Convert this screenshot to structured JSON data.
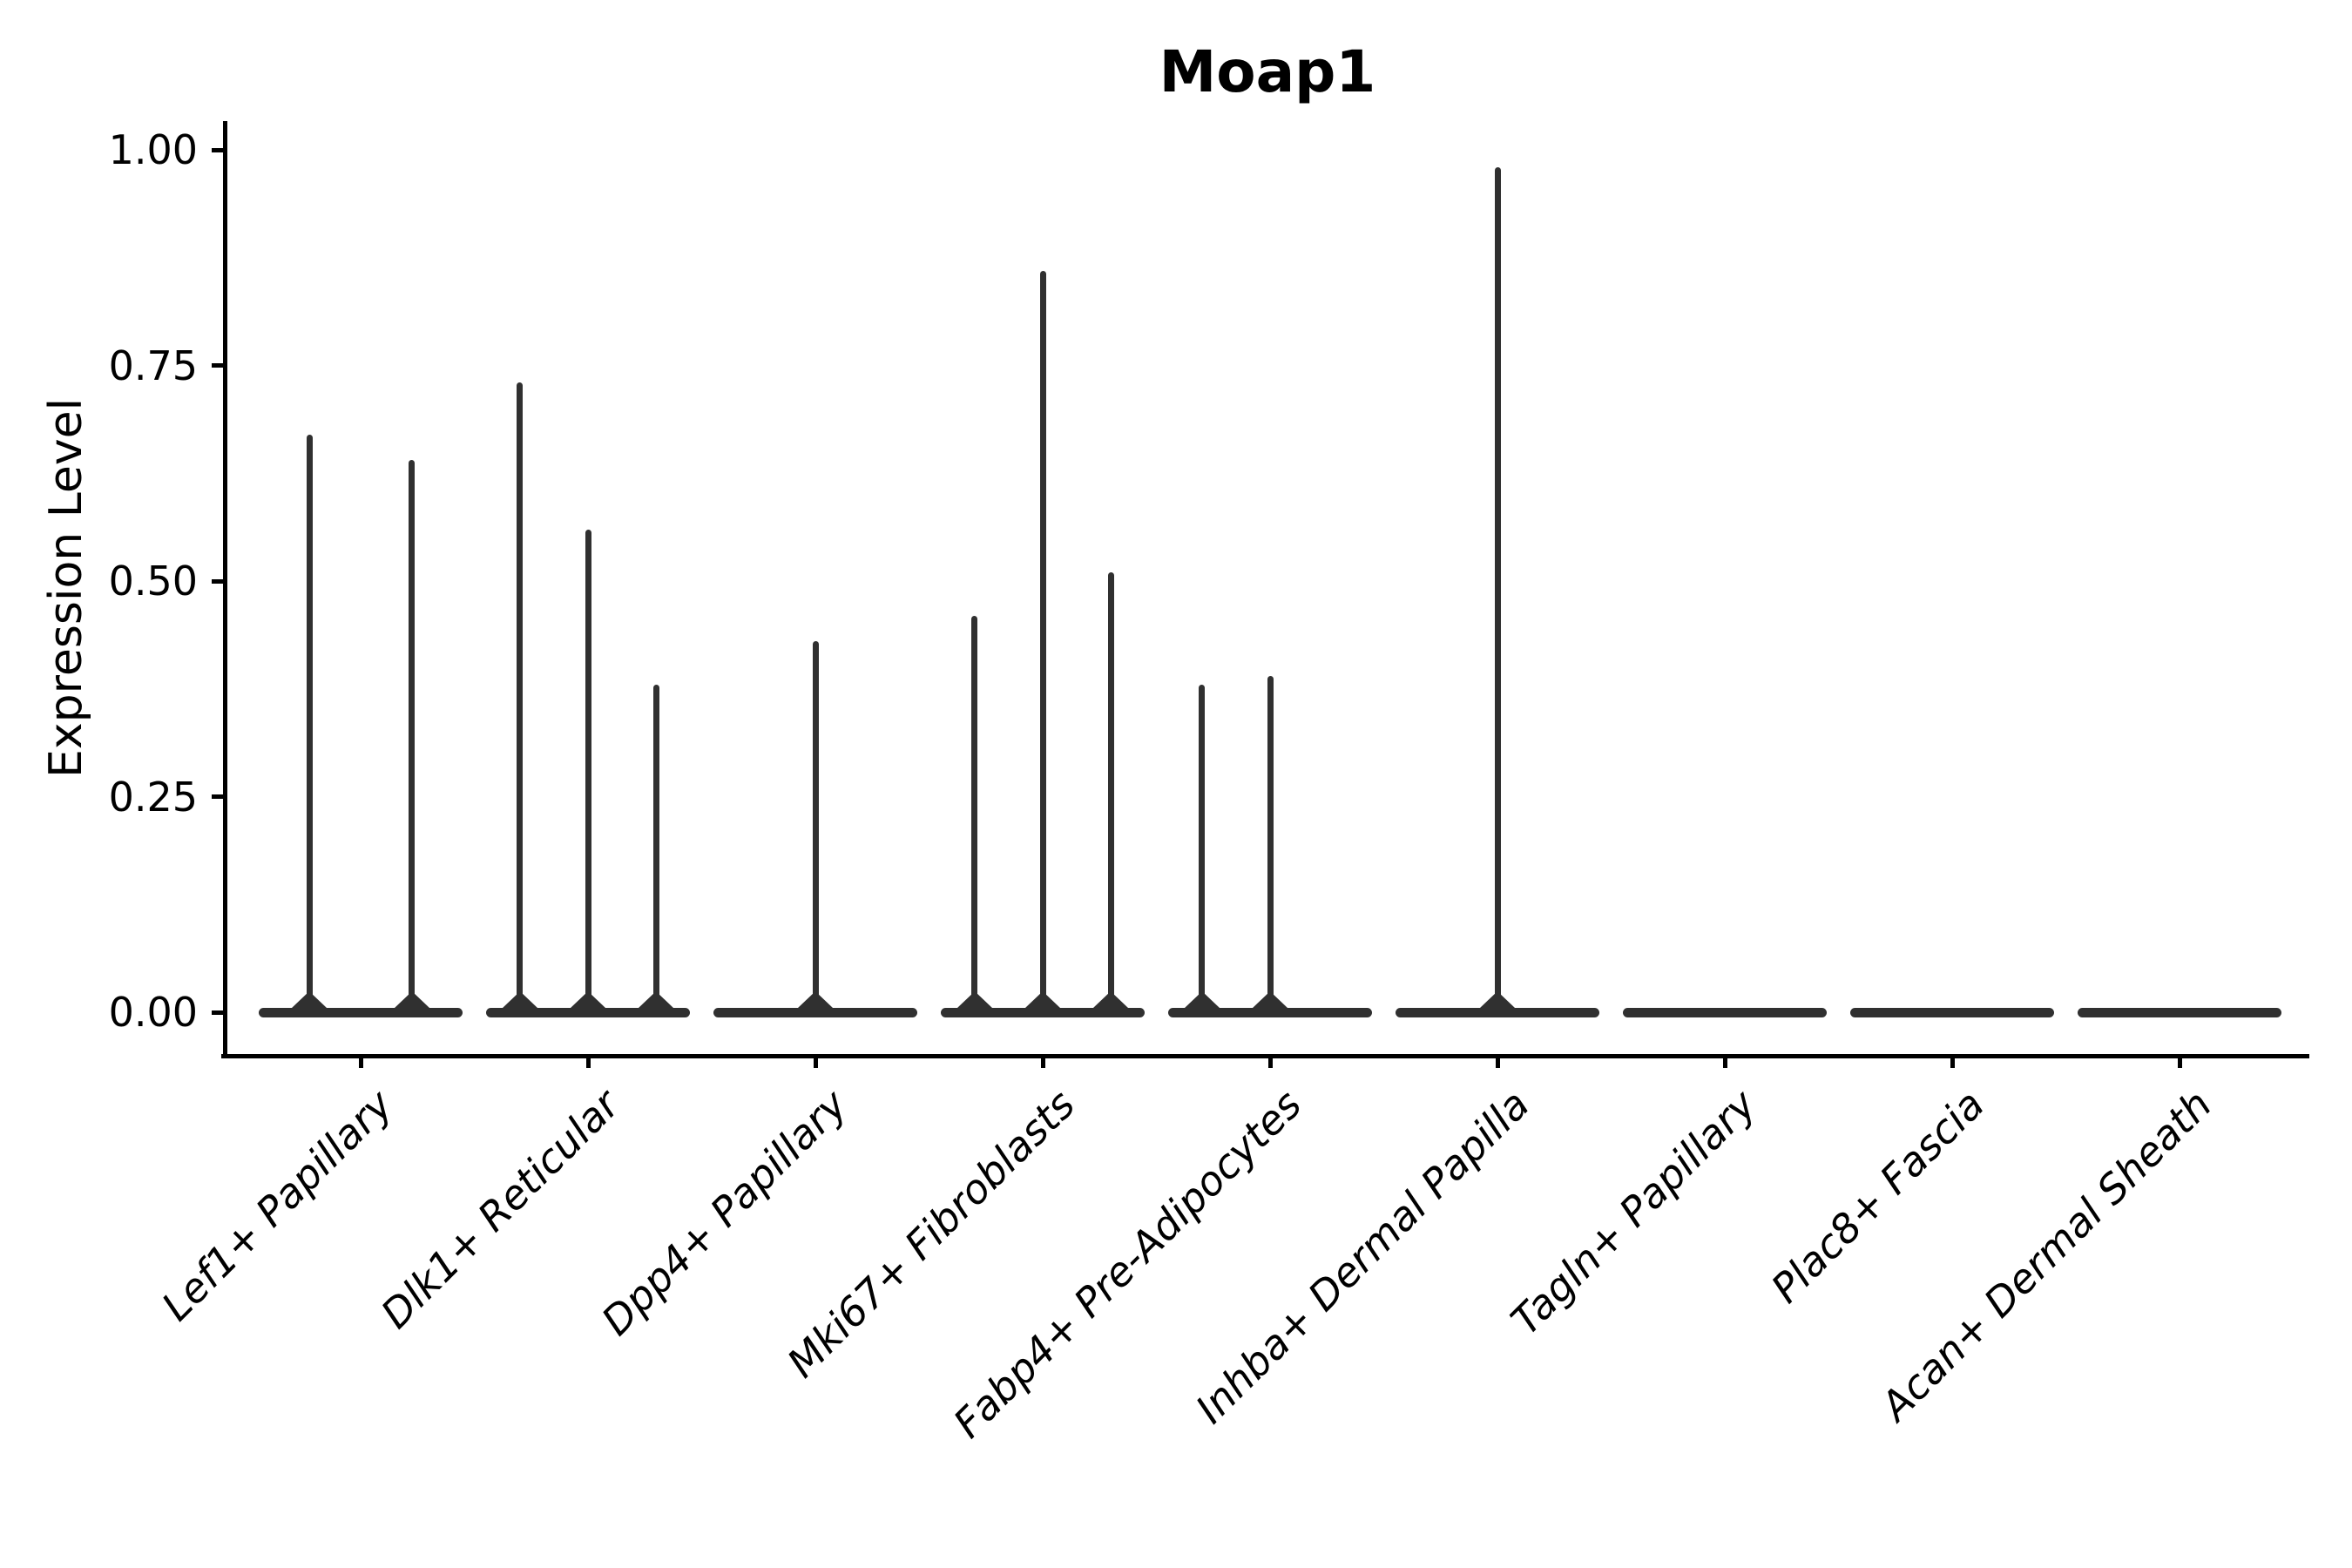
{
  "chart_data": {
    "type": "violin",
    "title": "Moap1",
    "ylabel": "Expression Level",
    "xlabel": "",
    "legend_position": "none",
    "grid": false,
    "ylim": [
      0,
      1.0
    ],
    "y_axis": {
      "tick_values": [
        0,
        0.25,
        0.5,
        0.75,
        1.0
      ],
      "tick_labels": [
        "0.00",
        "0.25",
        "0.50",
        "0.75",
        "1.00"
      ]
    },
    "x_tick_label_style": "italic, rotated 45deg, right-anchored",
    "categories": [
      {
        "label": "Lef1+ Papillary",
        "violins": [
          {
            "x_offset": -0.225,
            "max_expression": 0.67
          },
          {
            "x_offset": 0.225,
            "max_expression": 0.64
          }
        ]
      },
      {
        "label": "Dlk1+ Reticular",
        "violins": [
          {
            "x_offset": -0.3,
            "max_expression": 0.73
          },
          {
            "x_offset": 0.0,
            "max_expression": 0.56
          },
          {
            "x_offset": 0.3,
            "max_expression": 0.38
          }
        ]
      },
      {
        "label": "Dpp4+ Papillary",
        "violins": [
          {
            "x_offset": 0.0,
            "max_expression": 0.43
          }
        ]
      },
      {
        "label": "Mki67+ Fibroblasts",
        "violins": [
          {
            "x_offset": -0.3,
            "max_expression": 0.46
          },
          {
            "x_offset": 0.0,
            "max_expression": 0.86
          },
          {
            "x_offset": 0.3,
            "max_expression": 0.51
          }
        ]
      },
      {
        "label": "Fabp4+ Pre-Adipocytes",
        "violins": [
          {
            "x_offset": -0.3,
            "max_expression": 0.38
          },
          {
            "x_offset": 0.0,
            "max_expression": 0.39
          },
          {
            "x_offset": 0.3,
            "max_expression": 0.0
          }
        ]
      },
      {
        "label": "Inhba+ Dermal Papilla",
        "violins": [
          {
            "x_offset": 0.0,
            "max_expression": 0.98
          }
        ]
      },
      {
        "label": "Tagln+ Papillary",
        "violins": [
          {
            "x_offset": 0.0,
            "max_expression": 0.0
          }
        ]
      },
      {
        "label": "Plac8+ Fascia",
        "violins": [
          {
            "x_offset": 0.0,
            "max_expression": 0.0
          }
        ]
      },
      {
        "label": "Acan+ Dermal Sheath",
        "violins": [
          {
            "x_offset": 0.0,
            "max_expression": 0.0
          }
        ]
      }
    ],
    "colors": {
      "line": "#303030",
      "axis": "#000000",
      "text": "#000000",
      "background": "#ffffff"
    }
  }
}
